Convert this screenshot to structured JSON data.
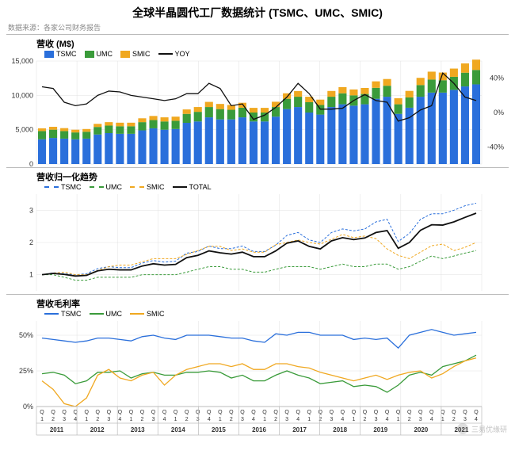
{
  "title": "全球半晶圆代工厂数据统计 (TSMC、UMC、SMIC)",
  "source": "数据来源：各家公司财务报告",
  "watermark": "三易优缘研",
  "colors": {
    "tsmc": "#2a6fdb",
    "umc": "#3a9b3a",
    "smic": "#f0a820",
    "yoy": "#111111",
    "total": "#111111",
    "grid": "#e0e0e0",
    "border": "#bbbbbb",
    "bg": "#ffffff"
  },
  "quarters_per_year": [
    "Q1",
    "Q2",
    "Q3",
    "Q4"
  ],
  "years": [
    "2011",
    "2012",
    "2013",
    "2014",
    "2015",
    "2016",
    "2017",
    "2018",
    "2019",
    "2020",
    "2021"
  ],
  "panel1": {
    "title": "营收 (M$)",
    "legend": [
      {
        "label": "TSMC",
        "type": "box",
        "color_key": "tsmc"
      },
      {
        "label": "UMC",
        "type": "box",
        "color_key": "umc"
      },
      {
        "label": "SMIC",
        "type": "box",
        "color_key": "smic"
      },
      {
        "label": "YOY",
        "type": "line",
        "color_key": "yoy"
      }
    ],
    "y_left": {
      "min": 0,
      "max": 15000,
      "ticks": [
        0,
        5000,
        10000,
        15000
      ]
    },
    "y_right": {
      "min": -60,
      "max": 60,
      "ticks": [
        -40,
        0,
        40
      ]
    },
    "tsmc": [
      3600,
      3800,
      3700,
      3600,
      3700,
      4300,
      4500,
      4400,
      4400,
      4900,
      5200,
      5000,
      5100,
      6000,
      6200,
      6800,
      6500,
      6500,
      6800,
      6200,
      6200,
      6900,
      8000,
      8300,
      7500,
      7200,
      8300,
      8700,
      8500,
      8700,
      9500,
      9800,
      7300,
      8200,
      9800,
      10400,
      10400,
      10800,
      11300,
      11600
    ],
    "umc": [
      1200,
      1200,
      1100,
      1000,
      1000,
      1100,
      1100,
      1100,
      1100,
      1200,
      1200,
      1200,
      1200,
      1300,
      1400,
      1500,
      1500,
      1400,
      1400,
      1300,
      1300,
      1400,
      1500,
      1500,
      1500,
      1400,
      1500,
      1600,
      1500,
      1500,
      1600,
      1600,
      1400,
      1500,
      1700,
      1900,
      1800,
      1900,
      2000,
      2100
    ],
    "smic": [
      400,
      420,
      430,
      400,
      400,
      450,
      500,
      520,
      520,
      560,
      600,
      600,
      600,
      650,
      700,
      750,
      750,
      700,
      720,
      680,
      680,
      770,
      800,
      830,
      800,
      780,
      840,
      900,
      860,
      880,
      940,
      980,
      880,
      950,
      1050,
      1150,
      1120,
      1200,
      1350,
      1500
    ],
    "yoy": [
      30,
      28,
      12,
      8,
      10,
      20,
      25,
      24,
      20,
      18,
      16,
      14,
      16,
      22,
      22,
      34,
      28,
      8,
      10,
      -8,
      -3,
      6,
      18,
      34,
      22,
      4,
      4,
      5,
      14,
      21,
      14,
      12,
      -10,
      -6,
      3,
      8,
      46,
      34,
      18,
      14
    ]
  },
  "panel2": {
    "title": "营收归一化趋势",
    "legend": [
      {
        "label": "TSMC",
        "type": "dash",
        "color_key": "tsmc"
      },
      {
        "label": "UMC",
        "type": "dash",
        "color_key": "umc"
      },
      {
        "label": "SMIC",
        "type": "dash",
        "color_key": "smic"
      },
      {
        "label": "TOTAL",
        "type": "solid",
        "color_key": "total"
      }
    ],
    "y": {
      "min": 0.5,
      "max": 3.5,
      "ticks": [
        1,
        2,
        3
      ]
    },
    "tsmc": [
      1.0,
      1.06,
      1.03,
      1.0,
      1.03,
      1.19,
      1.25,
      1.22,
      1.22,
      1.36,
      1.44,
      1.39,
      1.42,
      1.67,
      1.72,
      1.89,
      1.81,
      1.81,
      1.89,
      1.72,
      1.72,
      1.92,
      2.22,
      2.31,
      2.08,
      2.0,
      2.31,
      2.42,
      2.36,
      2.42,
      2.64,
      2.72,
      2.03,
      2.28,
      2.72,
      2.89,
      2.89,
      3.0,
      3.14,
      3.22
    ],
    "umc": [
      1.0,
      1.0,
      0.92,
      0.83,
      0.83,
      0.92,
      0.92,
      0.92,
      0.92,
      1.0,
      1.0,
      1.0,
      1.0,
      1.08,
      1.17,
      1.25,
      1.25,
      1.17,
      1.17,
      1.08,
      1.08,
      1.17,
      1.25,
      1.25,
      1.25,
      1.17,
      1.25,
      1.33,
      1.25,
      1.25,
      1.33,
      1.33,
      1.17,
      1.25,
      1.42,
      1.58,
      1.5,
      1.58,
      1.67,
      1.75
    ],
    "smic": [
      1.0,
      1.05,
      1.08,
      1.0,
      1.0,
      1.13,
      1.25,
      1.3,
      1.3,
      1.4,
      1.5,
      1.5,
      1.5,
      1.63,
      1.75,
      1.88,
      1.88,
      1.75,
      1.8,
      1.7,
      1.7,
      1.93,
      2.0,
      2.08,
      2.0,
      1.95,
      2.1,
      2.25,
      2.15,
      2.2,
      2.12,
      1.8,
      1.6,
      1.5,
      1.7,
      1.9,
      1.95,
      1.75,
      1.85,
      2.0
    ],
    "total": [
      1.0,
      1.04,
      1.01,
      0.96,
      0.98,
      1.12,
      1.17,
      1.15,
      1.15,
      1.27,
      1.34,
      1.3,
      1.32,
      1.53,
      1.6,
      1.74,
      1.68,
      1.64,
      1.7,
      1.56,
      1.56,
      1.74,
      1.98,
      2.05,
      1.88,
      1.8,
      2.05,
      2.15,
      2.09,
      2.14,
      2.31,
      2.37,
      1.82,
      2.0,
      2.38,
      2.55,
      2.54,
      2.64,
      2.78,
      2.91
    ]
  },
  "panel3": {
    "title": "营收毛利率",
    "legend": [
      {
        "label": "TSMC",
        "type": "solid",
        "color_key": "tsmc"
      },
      {
        "label": "UMC",
        "type": "solid",
        "color_key": "umc"
      },
      {
        "label": "SMIC",
        "type": "solid",
        "color_key": "smic"
      }
    ],
    "y": {
      "min": 0,
      "max": 60,
      "ticks": [
        0,
        25,
        50
      ]
    },
    "tsmc": [
      48,
      47,
      46,
      45,
      46,
      48,
      48,
      47,
      46,
      49,
      50,
      48,
      47,
      50,
      50,
      50,
      49,
      48,
      48,
      46,
      45,
      51,
      50,
      52,
      52,
      50,
      50,
      50,
      47,
      48,
      47,
      48,
      41,
      50,
      52,
      54,
      52,
      50,
      51,
      52
    ],
    "umc": [
      23,
      24,
      22,
      16,
      18,
      24,
      24,
      25,
      20,
      23,
      24,
      22,
      22,
      24,
      24,
      25,
      24,
      20,
      22,
      18,
      18,
      22,
      25,
      22,
      20,
      16,
      17,
      18,
      14,
      15,
      14,
      10,
      15,
      22,
      24,
      22,
      28,
      30,
      32,
      36
    ],
    "smic": [
      18,
      12,
      2,
      0,
      6,
      22,
      26,
      20,
      18,
      22,
      24,
      15,
      22,
      26,
      28,
      30,
      30,
      28,
      30,
      26,
      26,
      30,
      30,
      28,
      27,
      24,
      22,
      20,
      18,
      20,
      22,
      19,
      22,
      24,
      25,
      20,
      23,
      28,
      32,
      34
    ]
  }
}
